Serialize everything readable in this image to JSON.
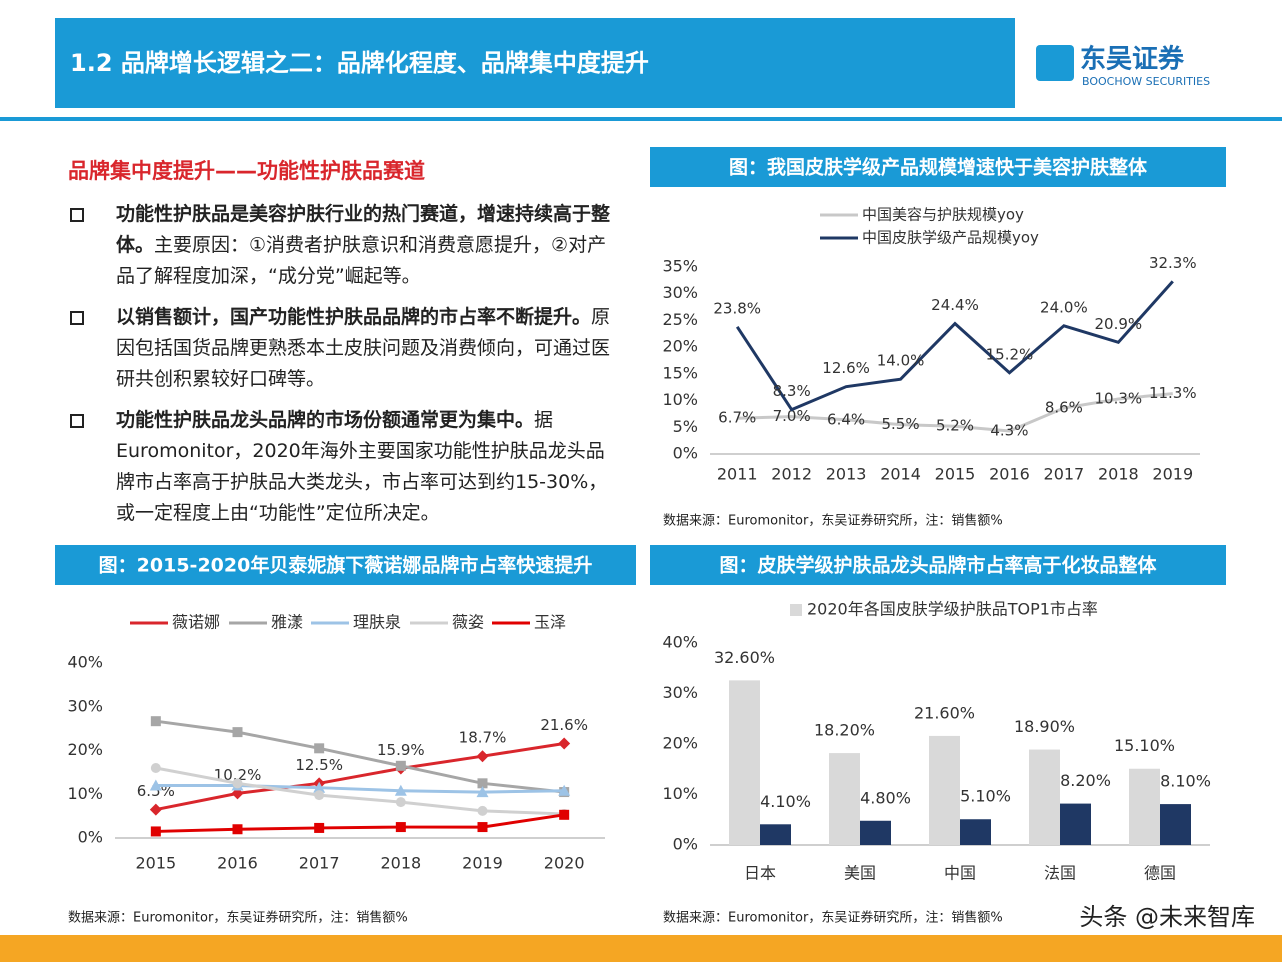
{
  "header": {
    "title": "1.2 品牌增长逻辑之二：品牌化程度、品牌集中度提升",
    "logo": "东吴证券",
    "logo_sub": "BOOCHOW SECURITIES"
  },
  "text": {
    "heading": "品牌集中度提升——功能性护肤品赛道",
    "bullets": [
      {
        "bold": "功能性护肤品是美容护肤行业的热门赛道，增速持续高于整体。",
        "normal": "主要原因：①消费者护肤意识和消费意愿提升，②对产品了解程度加深，“成分党”崛起等。"
      },
      {
        "bold": "以销售额计，国产功能性护肤品品牌的市占率不断提升。",
        "normal": "原因包括国货品牌更熟悉本土皮肤问题及消费倾向，可通过医研共创积累较好口碑等。"
      },
      {
        "bold": "功能性护肤品龙头品牌的市场份额通常更为集中。",
        "normal": "据Euromonitor，2020年海外主要国家功能性护肤品龙头品牌市占率高于护肤品大类龙头，市占率可达到约15-30%，或一定程度上由“功能性”定位所决定。"
      }
    ]
  },
  "watermark": "头条 @未来智库",
  "chart_data": [
    {
      "type": "line",
      "title": "图：我国皮肤学级产品规模增速快于美容护肤整体",
      "source": "数据来源：Euromonitor，东吴证券研究所，注：销售额%",
      "categories": [
        "2011",
        "2012",
        "2013",
        "2014",
        "2015",
        "2016",
        "2017",
        "2018",
        "2019"
      ],
      "series": [
        {
          "name": "中国美容与护肤规模yoy",
          "color": "#c8c8c8",
          "values": [
            6.7,
            7.0,
            6.4,
            5.5,
            5.2,
            4.3,
            8.6,
            10.3,
            11.3
          ],
          "value_labels": [
            "6.7%",
            "7.0%",
            "6.4%",
            "5.5%",
            "5.2%",
            "4.3%",
            "8.6%",
            "10.3%",
            "11.3%"
          ]
        },
        {
          "name": "中国皮肤学级产品规模yoy",
          "color": "#1f3864",
          "values": [
            23.8,
            8.3,
            12.6,
            14.0,
            24.4,
            15.2,
            24.0,
            20.9,
            32.3
          ],
          "value_labels": [
            "23.8%",
            "8.3%",
            "12.6%",
            "14.0%",
            "24.4%",
            "15.2%",
            "24.0%",
            "20.9%",
            "32.3%"
          ]
        }
      ],
      "ylim": [
        0,
        35
      ],
      "yticks": [
        {
          "value": 0,
          "label": "0%"
        },
        {
          "value": 5,
          "label": "5%"
        },
        {
          "value": 10,
          "label": "10%"
        },
        {
          "value": 15,
          "label": "15%"
        },
        {
          "value": 20,
          "label": "20%"
        },
        {
          "value": 25,
          "label": "25%"
        },
        {
          "value": 30,
          "label": "30%"
        },
        {
          "value": 35,
          "label": "35%"
        }
      ],
      "legend": "top-left"
    },
    {
      "type": "line",
      "title": "图：2015-2020年贝泰妮旗下薇诺娜品牌市占率快速提升",
      "source": "数据来源：Euromonitor，东吴证券研究所，注：销售额%",
      "categories": [
        "2015",
        "2016",
        "2017",
        "2018",
        "2019",
        "2020"
      ],
      "series": [
        {
          "name": "薇诺娜",
          "color": "#d9262c",
          "marker": "diamond",
          "values": [
            6.5,
            10.2,
            12.5,
            15.9,
            18.7,
            21.6
          ],
          "value_labels": [
            "6.5%",
            "10.2%",
            "12.5%",
            "15.9%",
            "18.7%",
            "21.6%"
          ]
        },
        {
          "name": "雅漾",
          "color": "#a6a6a6",
          "marker": "square",
          "values": [
            26.7,
            24.2,
            20.5,
            16.5,
            12.5,
            10.5
          ]
        },
        {
          "name": "理肤泉",
          "color": "#9dc3e6",
          "marker": "triangle",
          "values": [
            12.0,
            12.0,
            11.5,
            10.8,
            10.5,
            10.8
          ]
        },
        {
          "name": "薇姿",
          "color": "#d0d0d0",
          "marker": "circle",
          "values": [
            16.0,
            12.5,
            9.8,
            8.2,
            6.2,
            5.5
          ]
        },
        {
          "name": "玉泽",
          "color": "#e00000",
          "marker": "square",
          "values": [
            1.5,
            2.0,
            2.3,
            2.5,
            2.5,
            5.3
          ]
        }
      ],
      "ylim": [
        0,
        40
      ],
      "yticks": [
        {
          "value": 0,
          "label": "0%"
        },
        {
          "value": 10,
          "label": "10%"
        },
        {
          "value": 20,
          "label": "20%"
        },
        {
          "value": 30,
          "label": "30%"
        },
        {
          "value": 40,
          "label": "40%"
        }
      ],
      "legend": "top"
    },
    {
      "type": "bar",
      "title": "图：皮肤学级护肤品龙头品牌市占率高于化妆品整体",
      "source": "数据来源：Euromonitor，东吴证券研究所，注：销售额%",
      "categories": [
        "日本",
        "美国",
        "中国",
        "法国",
        "德国"
      ],
      "series": [
        {
          "name": "2020年各国皮肤学级护肤品TOP1市占率",
          "color": "#d9d9d9",
          "values": [
            32.6,
            18.2,
            21.6,
            18.9,
            15.1
          ],
          "value_labels": [
            "32.60%",
            "18.20%",
            "21.60%",
            "18.90%",
            "15.10%"
          ]
        },
        {
          "color": "#1f3864",
          "values": [
            4.1,
            4.8,
            5.1,
            8.2,
            8.1
          ],
          "value_labels": [
            "4.10%",
            "4.80%",
            "5.10%",
            "8.20%",
            "8.10%"
          ]
        }
      ],
      "ylim": [
        0,
        40
      ],
      "yticks": [
        {
          "value": 0,
          "label": "0%"
        },
        {
          "value": 10,
          "label": "10%"
        },
        {
          "value": 20,
          "label": "20%"
        },
        {
          "value": 30,
          "label": "30%"
        },
        {
          "value": 40,
          "label": "40%"
        }
      ],
      "legend": "top"
    }
  ]
}
